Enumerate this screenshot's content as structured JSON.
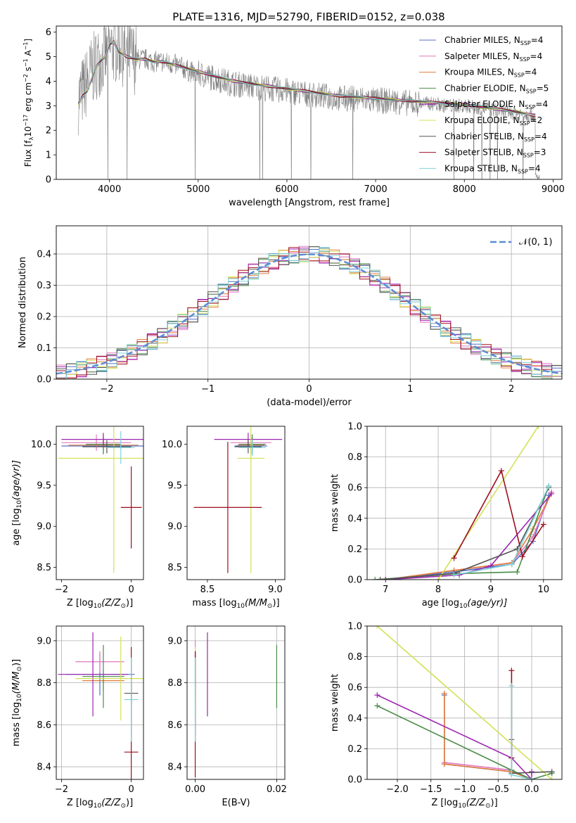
{
  "figure": {
    "title": "PLATE=1316, MJD=52790, FIBERID=0152, z=0.038"
  },
  "models": [
    {
      "name": "Chabrier MILES",
      "nssp": "4",
      "color": "#5470c6"
    },
    {
      "name": "Salpeter MILES",
      "nssp": "4",
      "color": "#e377c2"
    },
    {
      "name": "Kroupa MILES",
      "nssp": "4",
      "color": "#e07b39"
    },
    {
      "name": "Chabrier ELODIE",
      "nssp": "5",
      "color": "#4a8c4a"
    },
    {
      "name": "Salpeter ELODIE",
      "nssp": "4",
      "color": "#9c27b0"
    },
    {
      "name": "Kroupa ELODIE",
      "nssp": "2",
      "color": "#d4e157"
    },
    {
      "name": "Chabrier STELIB",
      "nssp": "4",
      "color": "#555555"
    },
    {
      "name": "Salpeter STELIB",
      "nssp": "3",
      "color": "#a00e1e"
    },
    {
      "name": "Kroupa STELIB",
      "nssp": "4",
      "color": "#7fd3d8"
    }
  ],
  "chart_data": [
    {
      "id": "spectrum",
      "type": "line",
      "xlabel": "wavelength [Angstrom, rest frame]",
      "ylabel_main": "Flux [f",
      "ylabel_sub": "λ",
      "ylabel_rest": "10",
      "ylabel_exp1": "−17",
      "ylabel_unit": " erg cm",
      "ylabel_exp2": "−2",
      "ylabel_s": " s",
      "ylabel_exp3": "−1",
      "ylabel_end": " A",
      "ylabel_exp4": "−1",
      "ylabel_close": "]",
      "legend_sub": "SSP",
      "legend_prefix": ", N",
      "legend_eq": "=",
      "xlim": [
        3400,
        9100
      ],
      "ylim": [
        0,
        6.25
      ],
      "xticks": [
        4000,
        5000,
        6000,
        7000,
        8000,
        9000
      ],
      "yticks": [
        0,
        1,
        2,
        3,
        4,
        5,
        6
      ],
      "legend_position": "top-right",
      "data_series": {
        "name": "data",
        "color": "#808080",
        "x": [
          3650,
          3700,
          3750,
          3800,
          3850,
          3900,
          3950,
          4000,
          4100,
          4200,
          4300,
          4400,
          4500,
          4600,
          4700,
          4800,
          4900,
          5000,
          5200,
          5400,
          5600,
          5800,
          6000,
          6200,
          6400,
          6600,
          6800,
          7000,
          7200,
          7400,
          7600,
          7800,
          8000,
          8200,
          8400,
          8600,
          8800
        ],
        "y": [
          3.3,
          3.6,
          4.0,
          4.4,
          4.7,
          4.9,
          5.0,
          5.3,
          5.4,
          5.1,
          4.9,
          4.9,
          4.8,
          4.8,
          4.7,
          4.6,
          4.4,
          4.3,
          4.1,
          3.9,
          3.8,
          3.7,
          3.6,
          3.5,
          3.4,
          3.3,
          3.3,
          3.2,
          3.2,
          3.1,
          3.1,
          3.0,
          3.0,
          2.9,
          2.8,
          2.7,
          2.6
        ]
      },
      "model_x": [
        3650,
        3700,
        3750,
        3800,
        3850,
        3900,
        3950,
        4000,
        4050,
        4100,
        4200,
        4300,
        4400,
        4500,
        4600,
        4700,
        4800,
        5000,
        5200,
        5400,
        5600,
        5800,
        6000,
        6200,
        6400,
        6600,
        6800,
        7000,
        7200,
        7400,
        7600,
        7800,
        8000,
        8200,
        8400,
        8600,
        8800
      ],
      "model_y": [
        3.1,
        3.4,
        3.6,
        4.1,
        4.6,
        4.8,
        5.0,
        5.5,
        5.6,
        5.2,
        5.0,
        4.9,
        4.9,
        4.8,
        4.8,
        4.7,
        4.6,
        4.4,
        4.2,
        4.0,
        3.9,
        3.8,
        3.7,
        3.6,
        3.5,
        3.4,
        3.35,
        3.3,
        3.25,
        3.2,
        3.15,
        3.1,
        3.05,
        2.95,
        2.85,
        2.75,
        2.6
      ]
    },
    {
      "id": "residuals",
      "type": "line",
      "xlabel": "(data-model)/error",
      "ylabel": "Normed distribution",
      "xlim": [
        -2.5,
        2.5
      ],
      "ylim": [
        0,
        0.49
      ],
      "xticks": [
        -2,
        -1,
        0,
        1,
        2
      ],
      "yticks": [
        0.0,
        0.1,
        0.2,
        0.3,
        0.4
      ],
      "gaussian_label": "𝒩(0, 1)",
      "gaussian_color": "#5b8bd6",
      "legend_position": "top-right",
      "grid": true
    },
    {
      "id": "age-vs-z",
      "type": "scatter",
      "xlabel": "Z [log",
      "xlabel_sub": "10",
      "xlabel_rest": "(Z/Z",
      "xlabel_sun": "⊙",
      "xlabel_close": ")]",
      "ylabel": "age  [log",
      "ylabel_sub": "10",
      "ylabel_rest": "(age/yr)]",
      "xlim": [
        -2.15,
        0.35
      ],
      "ylim": [
        8.35,
        10.22
      ],
      "xticks": [
        -2,
        0
      ],
      "yticks": [
        8.5,
        9.0,
        9.5,
        10.0
      ],
      "points": [
        {
          "model": 0,
          "x": -0.8,
          "y": 9.98,
          "xerr": 1.2,
          "yerr": 0.1
        },
        {
          "model": 1,
          "x": -1.0,
          "y": 10.02,
          "xerr": 1.0,
          "yerr": 0.1
        },
        {
          "model": 2,
          "x": -0.8,
          "y": 9.99,
          "xerr": 1.0,
          "yerr": 0.05
        },
        {
          "model": 3,
          "x": -0.8,
          "y": 10.0,
          "xerr": 0.5,
          "yerr": 0.12
        },
        {
          "model": 4,
          "x": -0.8,
          "y": 10.06,
          "xerr": 1.2,
          "yerr": 0.08
        },
        {
          "model": 5,
          "x": -0.5,
          "y": 9.83,
          "xerr": 1.6,
          "yerr": 1.4
        },
        {
          "model": 6,
          "x": -0.7,
          "y": 9.97,
          "xerr": 0.7,
          "yerr": 0.08
        },
        {
          "model": 7,
          "x": 0.0,
          "y": 9.23,
          "xerr": 0.3,
          "yerr": 0.5
        },
        {
          "model": 8,
          "x": -0.3,
          "y": 9.96,
          "xerr": 0.4,
          "yerr": 0.2
        }
      ]
    },
    {
      "id": "age-vs-mass",
      "type": "scatter",
      "xlabel": "mass [log",
      "xlabel_sub": "10",
      "xlabel_rest": "(M/M",
      "xlabel_sun": "⊙",
      "xlabel_close": ")]",
      "xlim": [
        8.35,
        9.07
      ],
      "ylim": [
        8.35,
        10.22
      ],
      "xticks": [
        8.5,
        9.0
      ],
      "yticks": [
        8.5,
        9.0,
        9.5,
        10.0
      ],
      "points": [
        {
          "model": 0,
          "x": 8.82,
          "y": 9.98,
          "xerr": 0.12,
          "yerr": 0.1
        },
        {
          "model": 1,
          "x": 8.82,
          "y": 10.02,
          "xerr": 0.15,
          "yerr": 0.1
        },
        {
          "model": 2,
          "x": 8.82,
          "y": 9.99,
          "xerr": 0.1,
          "yerr": 0.05
        },
        {
          "model": 3,
          "x": 8.83,
          "y": 10.0,
          "xerr": 0.1,
          "yerr": 0.12
        },
        {
          "model": 4,
          "x": 8.8,
          "y": 10.06,
          "xerr": 0.25,
          "yerr": 0.08
        },
        {
          "model": 5,
          "x": 8.82,
          "y": 9.83,
          "xerr": 0.1,
          "yerr": 1.4
        },
        {
          "model": 6,
          "x": 8.8,
          "y": 9.97,
          "xerr": 0.1,
          "yerr": 0.08
        },
        {
          "model": 7,
          "x": 8.65,
          "y": 9.23,
          "xerr": 0.25,
          "yerr": 0.8
        },
        {
          "model": 8,
          "x": 8.83,
          "y": 9.96,
          "xerr": 0.1,
          "yerr": 0.1
        }
      ]
    },
    {
      "id": "mass-weight-vs-age",
      "type": "line",
      "xlabel": "age  [log",
      "xlabel_sub": "10",
      "xlabel_rest": "(age/yr)]",
      "ylabel": "mass weight",
      "xlim": [
        6.65,
        10.35
      ],
      "ylim": [
        0,
        1.0
      ],
      "xticks": [
        7,
        8,
        9,
        10
      ],
      "yticks": [
        0.0,
        0.2,
        0.4,
        0.6,
        0.8,
        1.0
      ],
      "grid": true,
      "series": [
        {
          "model": 0,
          "x": [
            7.0,
            8.3,
            9.4,
            9.8,
            10.1
          ],
          "y": [
            0.0,
            0.05,
            0.1,
            0.25,
            0.55
          ]
        },
        {
          "model": 1,
          "x": [
            7.0,
            8.3,
            9.4,
            9.8,
            10.15
          ],
          "y": [
            0.0,
            0.06,
            0.11,
            0.28,
            0.57
          ]
        },
        {
          "model": 2,
          "x": [
            7.0,
            8.3,
            9.4,
            9.8,
            10.15
          ],
          "y": [
            0.0,
            0.06,
            0.11,
            0.33,
            0.56
          ]
        },
        {
          "model": 3,
          "x": [
            6.8,
            8.4,
            9.5,
            10.1
          ],
          "y": [
            0.0,
            0.04,
            0.05,
            0.61
          ]
        },
        {
          "model": 4,
          "x": [
            7.0,
            8.4,
            9.0,
            10.15
          ],
          "y": [
            0.0,
            0.03,
            0.09,
            0.56
          ]
        },
        {
          "model": 5,
          "x": [
            8.0,
            9.9
          ],
          "y": [
            0.0,
            1.0
          ]
        },
        {
          "model": 6,
          "x": [
            6.9,
            8.3,
            9.5,
            10.1
          ],
          "y": [
            0.0,
            0.04,
            0.2,
            0.6
          ]
        },
        {
          "model": 7,
          "x": [
            8.3,
            9.2,
            9.6,
            10.0
          ],
          "y": [
            0.14,
            0.71,
            0.15,
            0.36
          ]
        },
        {
          "model": 8,
          "x": [
            8.3,
            9.4,
            10.1
          ],
          "y": [
            0.03,
            0.1,
            0.61
          ]
        }
      ]
    },
    {
      "id": "mass-vs-z",
      "type": "scatter",
      "xlabel": "Z [log",
      "xlabel_sub": "10",
      "xlabel_rest": "(Z/Z",
      "xlabel_sun": "⊙",
      "xlabel_close": ")]",
      "ylabel": "mass [log",
      "ylabel_sub": "10",
      "ylabel_rest": "(M/M",
      "ylabel_sun": "⊙",
      "ylabel_close": ")]",
      "xlim": [
        -2.15,
        0.35
      ],
      "ylim": [
        8.34,
        9.07
      ],
      "xticks": [
        -2,
        0
      ],
      "yticks": [
        8.4,
        8.6,
        8.8,
        9.0
      ],
      "grid": true,
      "points": [
        {
          "model": 0,
          "x": -0.9,
          "y": 8.84,
          "xerr": 1.0,
          "yerr": 0.1
        },
        {
          "model": 1,
          "x": -0.9,
          "y": 8.9,
          "xerr": 0.7,
          "yerr": 0.05
        },
        {
          "model": 2,
          "x": -0.8,
          "y": 8.81,
          "xerr": 0.6,
          "yerr": 0.05
        },
        {
          "model": 3,
          "x": -0.8,
          "y": 8.83,
          "xerr": 0.6,
          "yerr": 0.15
        },
        {
          "model": 4,
          "x": -1.1,
          "y": 8.84,
          "xerr": 1.0,
          "yerr": 0.2
        },
        {
          "model": 5,
          "x": -0.3,
          "y": 8.82,
          "xerr": 1.3,
          "yerr": 0.2
        },
        {
          "model": 6,
          "x": 0.0,
          "y": 8.75,
          "xerr": 0.2,
          "yerr": 0.05
        },
        {
          "model": 7,
          "x": 0.0,
          "y": 8.47,
          "xerr": 0.2,
          "yerr": 0.5
        },
        {
          "model": 8,
          "x": 0.0,
          "y": 8.72,
          "xerr": 0.2,
          "yerr": 0.2
        }
      ]
    },
    {
      "id": "mass-vs-ebv",
      "type": "scatter",
      "xlabel": "E(B-V)",
      "xlim": [
        -0.002,
        0.022
      ],
      "ylim": [
        8.34,
        9.07
      ],
      "xticks": [
        0.0,
        0.02
      ],
      "yticks": [
        8.4,
        8.6,
        8.8,
        9.0
      ],
      "grid": true,
      "points": [
        {
          "model": 0,
          "x": 0.0,
          "y": 8.84,
          "xerr": 0,
          "yerr": 0.1
        },
        {
          "model": 1,
          "x": 0.0,
          "y": 8.9,
          "xerr": 0,
          "yerr": 0.1
        },
        {
          "model": 2,
          "x": 0.0,
          "y": 8.81,
          "xerr": 0,
          "yerr": 0.1
        },
        {
          "model": 3,
          "x": 0.02,
          "y": 8.83,
          "xerr": 0,
          "yerr": 0.15
        },
        {
          "model": 4,
          "x": 0.003,
          "y": 8.84,
          "xerr": 0,
          "yerr": 0.2
        },
        {
          "model": 5,
          "x": 0.0,
          "y": 8.82,
          "xerr": 0,
          "yerr": 0.15
        },
        {
          "model": 6,
          "x": 0.0,
          "y": 8.75,
          "xerr": 0,
          "yerr": 0.2
        },
        {
          "model": 7,
          "x": 0.0,
          "y": 8.65,
          "xerr": 0,
          "yerr": 0.3
        },
        {
          "model": 8,
          "x": 0.0,
          "y": 8.72,
          "xerr": 0,
          "yerr": 0.2
        }
      ]
    },
    {
      "id": "mass-weight-vs-z",
      "type": "line",
      "xlabel": "Z [log",
      "xlabel_sub": "10",
      "xlabel_rest": "(Z/Z",
      "xlabel_sun": "⊙",
      "xlabel_close": ")]",
      "ylabel": "mass weight",
      "xlim": [
        -2.45,
        0.45
      ],
      "ylim": [
        0,
        1.0
      ],
      "xticks": [
        -2.0,
        -1.5,
        -1.0,
        -0.5,
        0.0
      ],
      "yticks": [
        0.0,
        0.2,
        0.4,
        0.6,
        0.8,
        1.0
      ],
      "grid": true,
      "series": [
        {
          "model": 0,
          "x": [
            -1.3,
            -1.3,
            -0.3,
            0.0
          ],
          "y": [
            0.55,
            0.1,
            0.05,
            0.0
          ]
        },
        {
          "model": 1,
          "x": [
            -1.3,
            -1.3,
            -0.3,
            0.0
          ],
          "y": [
            0.56,
            0.11,
            0.06,
            0.0
          ]
        },
        {
          "model": 2,
          "x": [
            -1.3,
            -1.3,
            -0.3,
            0.0
          ],
          "y": [
            0.56,
            0.1,
            0.05,
            0.0
          ]
        },
        {
          "model": 3,
          "x": [
            -2.3,
            -0.3,
            0.0,
            0.3
          ],
          "y": [
            0.48,
            0.06,
            0.0,
            0.04
          ]
        },
        {
          "model": 4,
          "x": [
            -2.3,
            -0.3,
            0.0,
            0.0
          ],
          "y": [
            0.55,
            0.14,
            0.0,
            0.05
          ]
        },
        {
          "model": 5,
          "x": [
            -2.3,
            0.3
          ],
          "y": [
            1.0,
            0.0
          ]
        },
        {
          "model": 6,
          "x": [
            -0.3,
            -0.3,
            0.3
          ],
          "y": [
            0.26,
            0.04,
            0.05
          ]
        },
        {
          "model": 7,
          "x": [
            -0.3,
            -0.3
          ],
          "y": [
            0.71,
            0.14
          ]
        },
        {
          "model": 8,
          "x": [
            -0.3,
            -0.3,
            0.0
          ],
          "y": [
            0.61,
            0.03,
            0.0
          ]
        }
      ]
    }
  ]
}
